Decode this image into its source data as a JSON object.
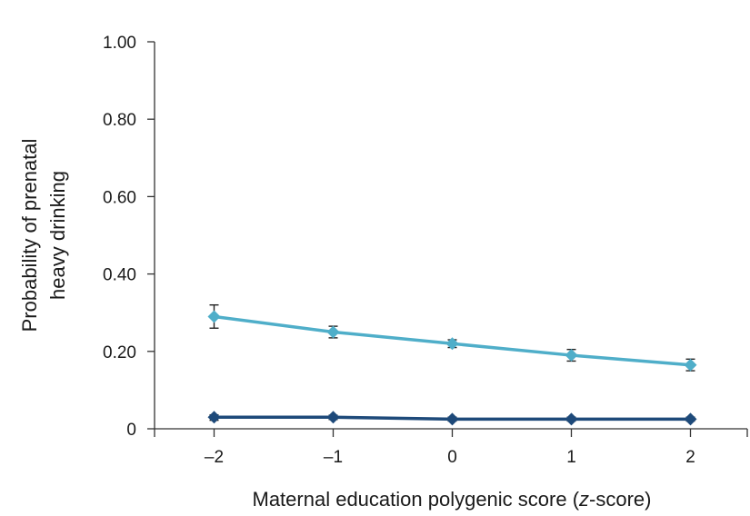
{
  "chart_data": {
    "type": "line",
    "title": "",
    "xlabel_pre": "Maternal education polygenic score (",
    "xlabel_italic": "z",
    "xlabel_post": "-score)",
    "ylabel_line1": "Probability of prenatal",
    "ylabel_line2": "heavy drinking",
    "x": [
      -2,
      -1,
      0,
      1,
      2
    ],
    "x_tick_labels": [
      "–2",
      "–1",
      "0",
      "1",
      "2"
    ],
    "y_ticks": [
      0,
      0.2,
      0.4,
      0.6,
      0.8,
      1.0
    ],
    "y_tick_labels": [
      "0",
      "0.20",
      "0.40",
      "0.60",
      "0.80",
      "1.00"
    ],
    "xlim": [
      -2.5,
      2.5
    ],
    "ylim": [
      0,
      1.0
    ],
    "grid": false,
    "series": [
      {
        "color": "#4faec9",
        "marker": "diamond",
        "values": [
          0.29,
          0.25,
          0.22,
          0.19,
          0.165
        ],
        "err_low": [
          0.26,
          0.235,
          0.21,
          0.175,
          0.15
        ],
        "err_high": [
          0.32,
          0.265,
          0.23,
          0.205,
          0.18
        ]
      },
      {
        "color": "#1e4a7a",
        "marker": "diamond",
        "values": [
          0.03,
          0.03,
          0.025,
          0.025,
          0.025
        ],
        "err_low": [
          0.022,
          0.024,
          0.02,
          0.02,
          0.02
        ],
        "err_high": [
          0.036,
          0.035,
          0.03,
          0.03,
          0.03
        ]
      }
    ]
  }
}
